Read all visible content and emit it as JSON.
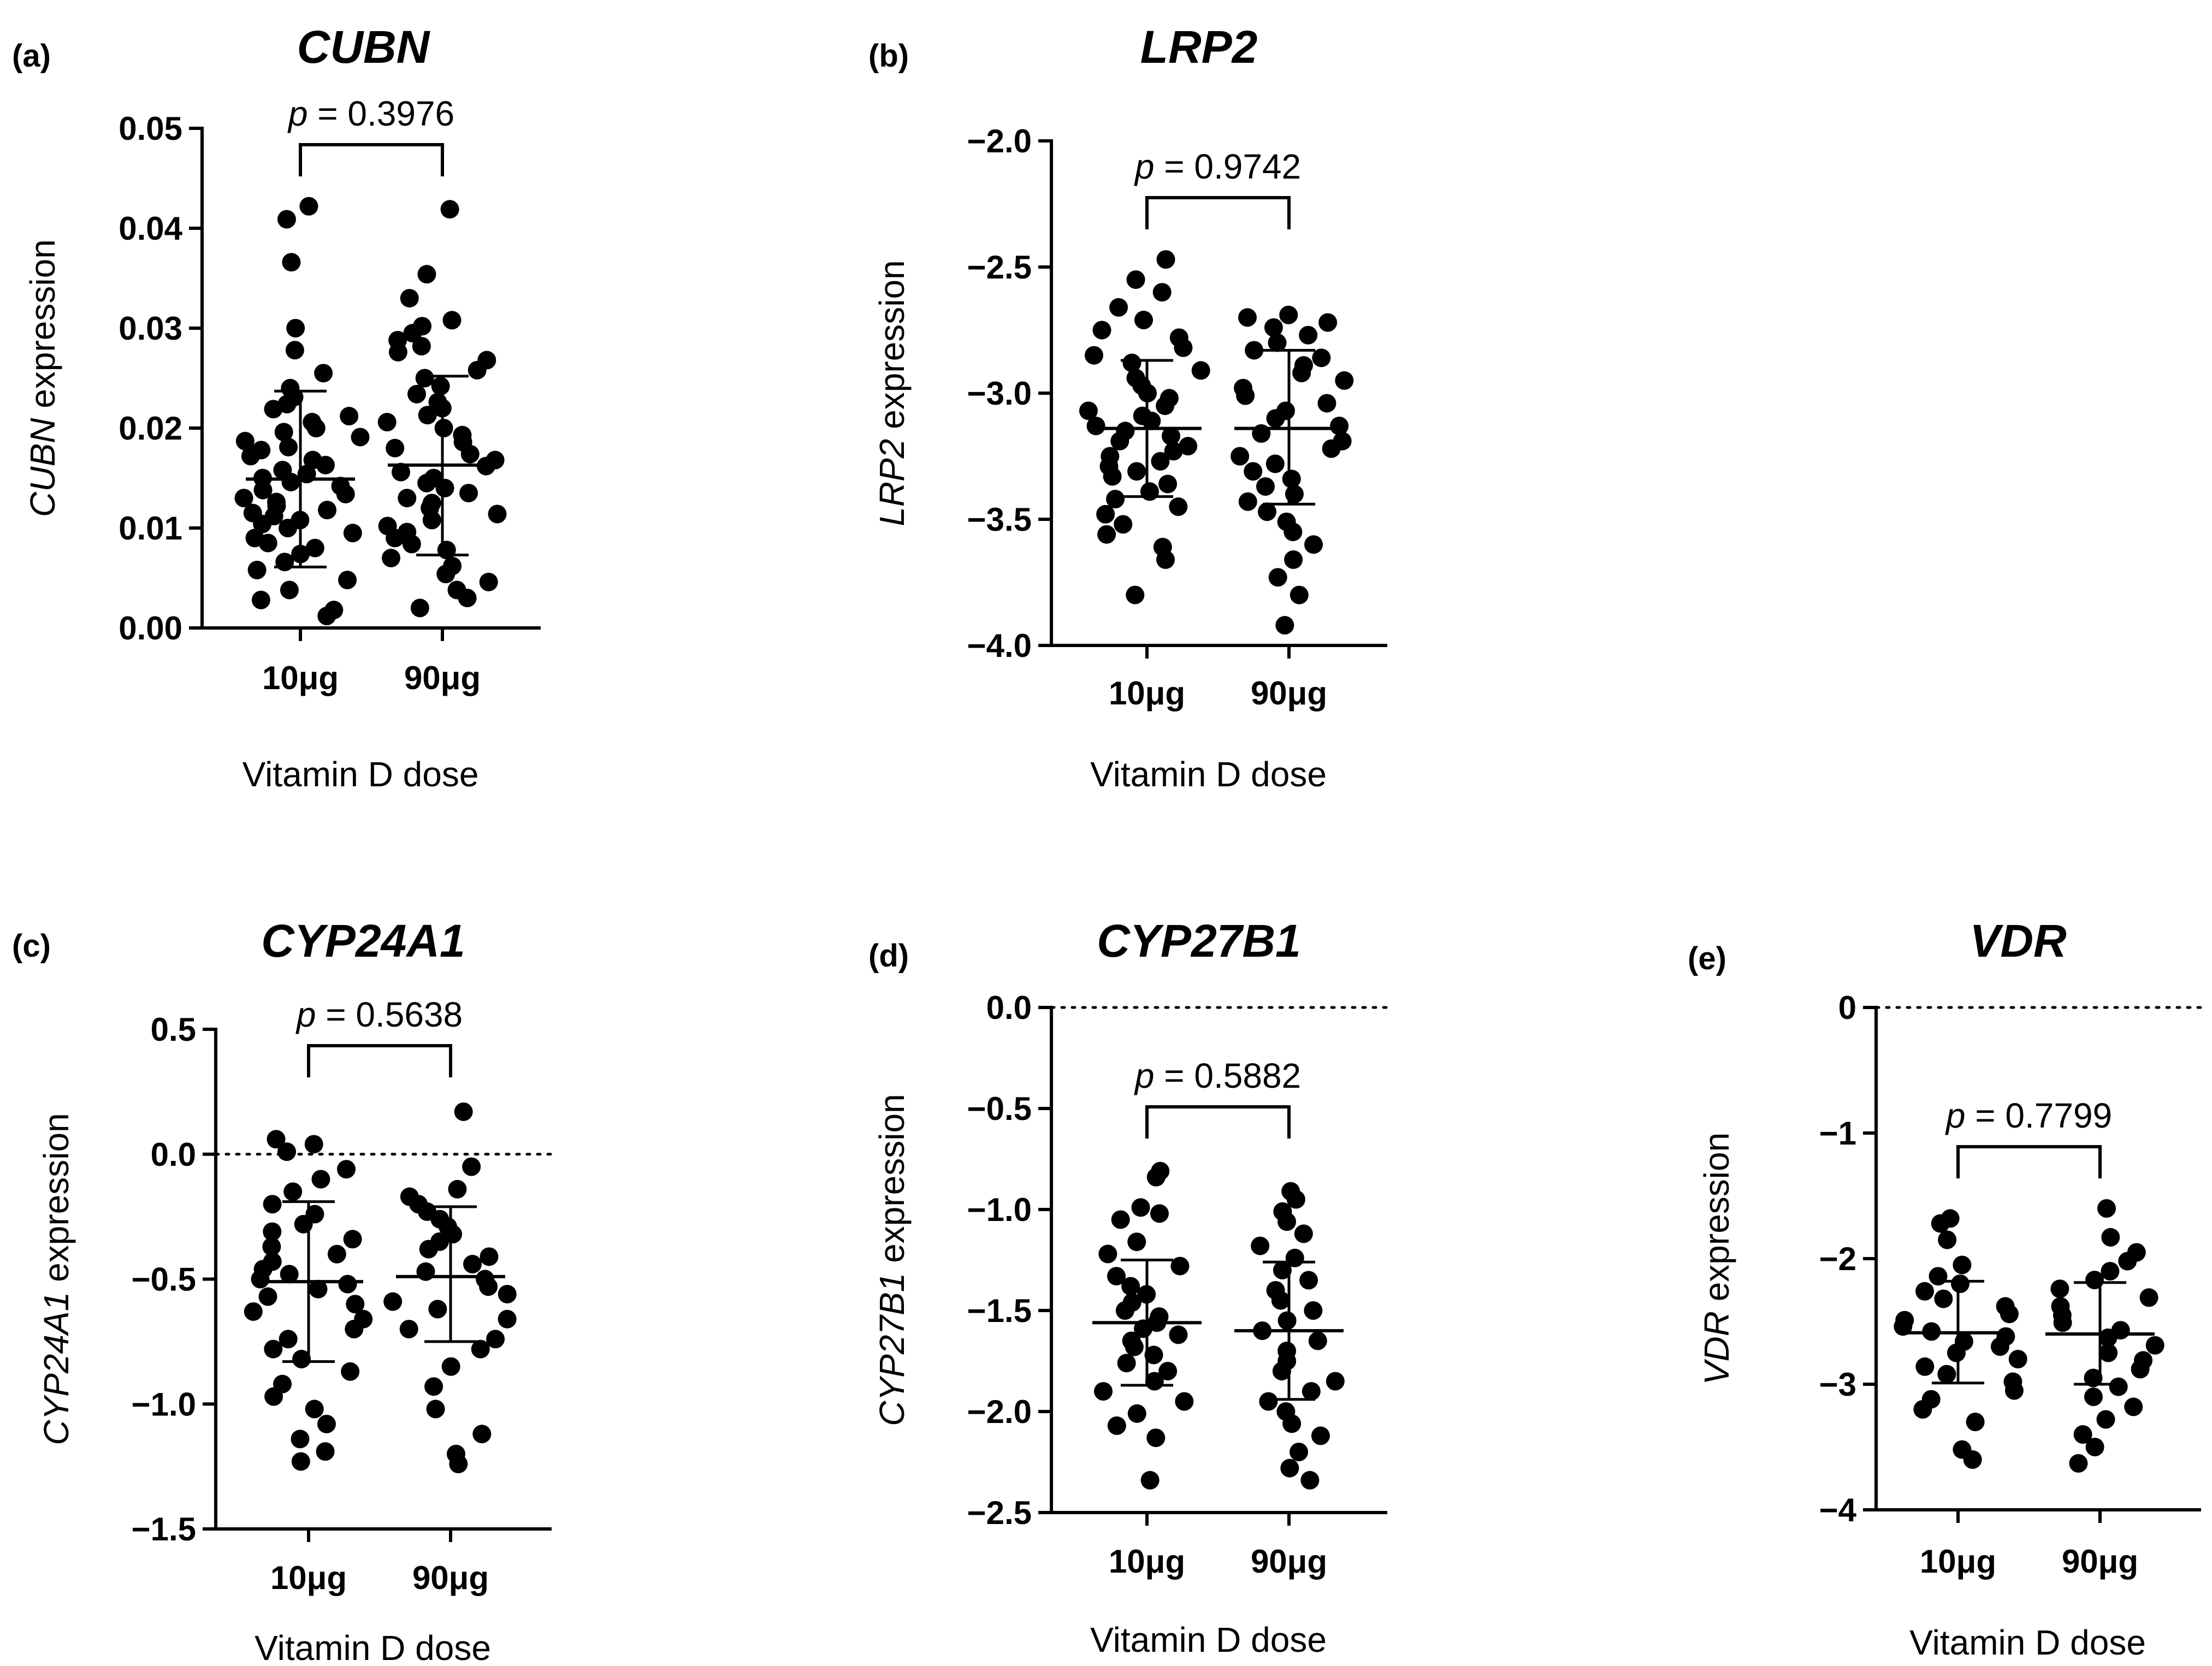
{
  "x_label": "Vitamin D dose",
  "p_prefix": "p",
  "p_equals": " = ",
  "chart_data": [
    {
      "type": "scatter",
      "panel": "(a)",
      "title": "CUBN",
      "ylabel_gene": "CUBN",
      "ylabel_suffix": " expression",
      "xlabel": "Vitamin D dose",
      "categories": [
        "10μg",
        "90μg"
      ],
      "ylim": [
        0.0,
        0.05
      ],
      "yticks": [
        0.0,
        0.01,
        0.02,
        0.03,
        0.04,
        0.05
      ],
      "ytick_labels": [
        "0.00",
        "0.01",
        "0.02",
        "0.03",
        "0.04",
        "0.05"
      ],
      "zero_line": false,
      "p_value": "0.3976",
      "series": [
        {
          "name": "10μg",
          "mean": 0.0149,
          "sd_low": 0.0061,
          "sd_high": 0.0237,
          "values": [
            0.0422,
            0.0409,
            0.0366,
            0.03,
            0.0278,
            0.0255,
            0.024,
            0.0231,
            0.0224,
            0.0219,
            0.0212,
            0.0206,
            0.02,
            0.0196,
            0.0191,
            0.0187,
            0.0181,
            0.0178,
            0.0172,
            0.0168,
            0.0163,
            0.0158,
            0.0154,
            0.015,
            0.0146,
            0.0142,
            0.0138,
            0.0134,
            0.013,
            0.0126,
            0.0122,
            0.0118,
            0.0115,
            0.0112,
            0.0108,
            0.0104,
            0.01,
            0.0095,
            0.009,
            0.0085,
            0.008,
            0.0074,
            0.0066,
            0.0058,
            0.0048,
            0.0038,
            0.0028,
            0.0018,
            0.0012
          ]
        },
        {
          "name": "90μg",
          "mean": 0.0163,
          "sd_low": 0.0073,
          "sd_high": 0.0252,
          "values": [
            0.0419,
            0.0354,
            0.033,
            0.0308,
            0.0302,
            0.0295,
            0.0288,
            0.0282,
            0.0276,
            0.0268,
            0.0258,
            0.025,
            0.0242,
            0.0234,
            0.0226,
            0.022,
            0.0213,
            0.0206,
            0.02,
            0.0193,
            0.0186,
            0.018,
            0.0174,
            0.0168,
            0.0162,
            0.0156,
            0.015,
            0.0145,
            0.014,
            0.0135,
            0.013,
            0.0125,
            0.012,
            0.0114,
            0.0108,
            0.0102,
            0.0096,
            0.009,
            0.0084,
            0.0078,
            0.007,
            0.0062,
            0.0054,
            0.0046,
            0.0038,
            0.003,
            0.002
          ]
        }
      ]
    },
    {
      "type": "scatter",
      "panel": "(b)",
      "title": "LRP2",
      "ylabel_gene": "LRP2",
      "ylabel_suffix": " expression",
      "xlabel": "Vitamin D dose",
      "categories": [
        "10μg",
        "90μg"
      ],
      "ylim": [
        -4.0,
        -2.0
      ],
      "yticks": [
        -4.0,
        -3.5,
        -3.0,
        -2.5,
        -2.0
      ],
      "ytick_labels": [
        "−4.0",
        "−3.5",
        "−3.0",
        "−2.5",
        "−2.0"
      ],
      "zero_line": false,
      "p_value": "0.9742",
      "series": [
        {
          "name": "10μg",
          "mean": -3.14,
          "sd_low": -3.41,
          "sd_high": -2.87,
          "values": [
            -2.47,
            -2.55,
            -2.6,
            -2.66,
            -2.71,
            -2.75,
            -2.78,
            -2.82,
            -2.85,
            -2.88,
            -2.91,
            -2.94,
            -2.97,
            -3.0,
            -3.02,
            -3.05,
            -3.07,
            -3.09,
            -3.11,
            -3.13,
            -3.15,
            -3.17,
            -3.19,
            -3.21,
            -3.23,
            -3.25,
            -3.27,
            -3.29,
            -3.31,
            -3.33,
            -3.36,
            -3.39,
            -3.42,
            -3.45,
            -3.48,
            -3.52,
            -3.56,
            -3.61,
            -3.66,
            -3.8
          ]
        },
        {
          "name": "90μg",
          "mean": -3.14,
          "sd_low": -3.44,
          "sd_high": -2.83,
          "values": [
            -2.69,
            -2.7,
            -2.72,
            -2.74,
            -2.77,
            -2.8,
            -2.83,
            -2.86,
            -2.89,
            -2.92,
            -2.95,
            -2.98,
            -3.01,
            -3.04,
            -3.07,
            -3.1,
            -3.13,
            -3.16,
            -3.19,
            -3.22,
            -3.25,
            -3.28,
            -3.31,
            -3.34,
            -3.37,
            -3.4,
            -3.43,
            -3.47,
            -3.51,
            -3.55,
            -3.6,
            -3.66,
            -3.73,
            -3.8,
            -3.92
          ]
        }
      ]
    },
    {
      "type": "scatter",
      "panel": "(c)",
      "title": "CYP24A1",
      "ylabel_gene": "CYP24A1",
      "ylabel_suffix": " expression",
      "xlabel": "Vitamin D dose",
      "categories": [
        "10μg",
        "90μg"
      ],
      "ylim": [
        -1.5,
        0.5
      ],
      "yticks": [
        -1.5,
        -1.0,
        -0.5,
        0.0,
        0.5
      ],
      "ytick_labels": [
        "−1.5",
        "−1.0",
        "−0.5",
        "0.0",
        "0.5"
      ],
      "zero_line": true,
      "p_value": "0.5638",
      "series": [
        {
          "name": "10μg",
          "mean": -0.51,
          "sd_low": -0.83,
          "sd_high": -0.19,
          "values": [
            0.06,
            0.04,
            0.01,
            -0.06,
            -0.1,
            -0.15,
            -0.2,
            -0.24,
            -0.28,
            -0.31,
            -0.34,
            -0.37,
            -0.4,
            -0.43,
            -0.46,
            -0.48,
            -0.5,
            -0.52,
            -0.54,
            -0.57,
            -0.6,
            -0.63,
            -0.66,
            -0.7,
            -0.74,
            -0.78,
            -0.82,
            -0.87,
            -0.92,
            -0.97,
            -1.02,
            -1.08,
            -1.14,
            -1.19,
            -1.23
          ]
        },
        {
          "name": "90μg",
          "mean": -0.49,
          "sd_low": -0.75,
          "sd_high": -0.21,
          "values": [
            0.17,
            -0.05,
            -0.14,
            -0.17,
            -0.2,
            -0.23,
            -0.26,
            -0.29,
            -0.32,
            -0.35,
            -0.38,
            -0.41,
            -0.44,
            -0.47,
            -0.5,
            -0.53,
            -0.56,
            -0.59,
            -0.62,
            -0.66,
            -0.7,
            -0.74,
            -0.78,
            -0.85,
            -0.93,
            -1.02,
            -1.12,
            -1.2,
            -1.24
          ]
        }
      ]
    },
    {
      "type": "scatter",
      "panel": "(d)",
      "title": "CYP27B1",
      "ylabel_gene": "CYP27B1",
      "ylabel_suffix": " expression",
      "xlabel": "Vitamin D dose",
      "categories": [
        "10μg",
        "90μg"
      ],
      "ylim": [
        -2.5,
        0.0
      ],
      "yticks": [
        -2.5,
        -2.0,
        -1.5,
        -1.0,
        -0.5,
        0.0
      ],
      "ytick_labels": [
        "−2.5",
        "−2.0",
        "−1.5",
        "−1.0",
        "−0.5",
        "0.0"
      ],
      "zero_line": true,
      "p_value": "0.5882",
      "series": [
        {
          "name": "10μg",
          "mean": -1.56,
          "sd_low": -1.87,
          "sd_high": -1.25,
          "values": [
            -0.81,
            -0.84,
            -0.99,
            -1.02,
            -1.05,
            -1.16,
            -1.22,
            -1.28,
            -1.33,
            -1.38,
            -1.42,
            -1.46,
            -1.5,
            -1.53,
            -1.56,
            -1.59,
            -1.62,
            -1.65,
            -1.68,
            -1.72,
            -1.76,
            -1.8,
            -1.85,
            -1.9,
            -1.95,
            -2.01,
            -2.07,
            -2.13,
            -2.34
          ]
        },
        {
          "name": "90μg",
          "mean": -1.6,
          "sd_low": -1.94,
          "sd_high": -1.26,
          "values": [
            -0.91,
            -0.95,
            -1.01,
            -1.06,
            -1.12,
            -1.18,
            -1.24,
            -1.3,
            -1.35,
            -1.4,
            -1.45,
            -1.5,
            -1.55,
            -1.6,
            -1.65,
            -1.7,
            -1.75,
            -1.8,
            -1.85,
            -1.9,
            -1.95,
            -2.0,
            -2.06,
            -2.12,
            -2.2,
            -2.28,
            -2.34
          ]
        }
      ]
    },
    {
      "type": "scatter",
      "panel": "(e)",
      "title": "VDR",
      "ylabel_gene": "VDR",
      "ylabel_suffix": " expression",
      "xlabel": "Vitamin D dose",
      "categories": [
        "10μg",
        "90μg"
      ],
      "ylim": [
        -4,
        0
      ],
      "yticks": [
        -4,
        -3,
        -2,
        -1,
        0
      ],
      "ytick_labels": [
        "−4",
        "−3",
        "−2",
        "−1",
        "0"
      ],
      "zero_line": true,
      "p_value": "0.7799",
      "series": [
        {
          "name": "10μg",
          "mean": -2.59,
          "sd_low": -2.99,
          "sd_high": -2.18,
          "values": [
            -1.68,
            -1.72,
            -1.85,
            -2.05,
            -2.14,
            -2.2,
            -2.26,
            -2.32,
            -2.38,
            -2.44,
            -2.49,
            -2.54,
            -2.58,
            -2.62,
            -2.66,
            -2.7,
            -2.75,
            -2.8,
            -2.86,
            -2.92,
            -2.98,
            -3.05,
            -3.12,
            -3.2,
            -3.3,
            -3.52,
            -3.6
          ]
        },
        {
          "name": "90μg",
          "mean": -2.6,
          "sd_low": -3.0,
          "sd_high": -2.19,
          "values": [
            -1.6,
            -1.83,
            -1.95,
            -2.02,
            -2.1,
            -2.17,
            -2.24,
            -2.31,
            -2.38,
            -2.45,
            -2.51,
            -2.57,
            -2.63,
            -2.69,
            -2.75,
            -2.81,
            -2.88,
            -2.95,
            -3.02,
            -3.1,
            -3.18,
            -3.28,
            -3.4,
            -3.5,
            -3.63
          ]
        }
      ]
    }
  ]
}
